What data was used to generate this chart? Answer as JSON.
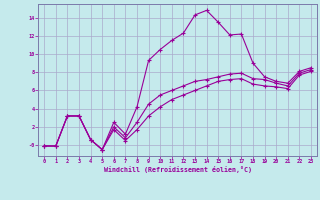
{
  "background_color": "#c5eaec",
  "grid_color": "#aaaacc",
  "line_color": "#990099",
  "xlabel": "Windchill (Refroidissement éolien,°C)",
  "xlim": [
    -0.5,
    23.5
  ],
  "ylim": [
    -1.2,
    15.5
  ],
  "xticks": [
    0,
    1,
    2,
    3,
    4,
    5,
    6,
    7,
    8,
    9,
    10,
    11,
    12,
    13,
    14,
    15,
    16,
    17,
    18,
    19,
    20,
    21,
    22,
    23
  ],
  "yticks": [
    0,
    2,
    4,
    6,
    8,
    10,
    12,
    14
  ],
  "ytick_labels": [
    "-0",
    "2",
    "4",
    "6",
    "8",
    "10",
    "12",
    "14"
  ],
  "line1_x": [
    0,
    1,
    2,
    3,
    4,
    5,
    6,
    7,
    8,
    9,
    10,
    11,
    12,
    13,
    14,
    15,
    16,
    17,
    18,
    19,
    20,
    21,
    22,
    23
  ],
  "line1_y": [
    -0.1,
    -0.1,
    3.2,
    3.2,
    0.6,
    -0.5,
    2.5,
    1.2,
    4.2,
    9.3,
    10.5,
    11.5,
    12.3,
    14.3,
    14.8,
    13.5,
    12.1,
    12.2,
    9.0,
    7.5,
    7.0,
    6.8,
    8.1,
    8.5
  ],
  "line2_x": [
    0,
    1,
    2,
    3,
    4,
    5,
    6,
    7,
    8,
    9,
    10,
    11,
    12,
    13,
    14,
    15,
    16,
    17,
    18,
    19,
    20,
    21,
    22,
    23
  ],
  "line2_y": [
    -0.1,
    -0.1,
    3.2,
    3.2,
    0.6,
    -0.5,
    2.0,
    0.8,
    2.5,
    4.5,
    5.5,
    6.0,
    6.5,
    7.0,
    7.2,
    7.5,
    7.8,
    7.9,
    7.3,
    7.2,
    6.8,
    6.5,
    7.9,
    8.3
  ],
  "line3_x": [
    0,
    1,
    2,
    3,
    4,
    5,
    6,
    7,
    8,
    9,
    10,
    11,
    12,
    13,
    14,
    15,
    16,
    17,
    18,
    19,
    20,
    21,
    22,
    23
  ],
  "line3_y": [
    -0.1,
    -0.1,
    3.2,
    3.2,
    0.6,
    -0.5,
    1.7,
    0.5,
    1.7,
    3.2,
    4.2,
    5.0,
    5.5,
    6.0,
    6.5,
    7.0,
    7.2,
    7.3,
    6.7,
    6.5,
    6.4,
    6.2,
    7.7,
    8.1
  ]
}
